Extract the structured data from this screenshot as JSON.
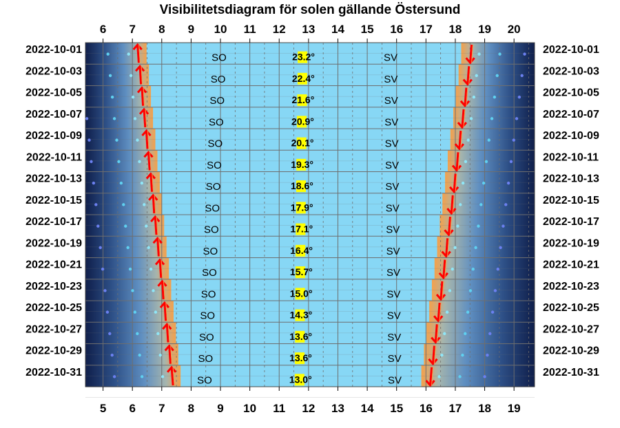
{
  "chart_data": {
    "type": "visibility-diagram",
    "title": "Visibilitetsdiagram för solen gällande Östersund",
    "top_axis_hours": [
      "6",
      "7",
      "8",
      "9",
      "10",
      "11",
      "12",
      "13",
      "14",
      "15",
      "16",
      "17",
      "18",
      "19",
      "20"
    ],
    "bottom_axis_hours": [
      "5",
      "6",
      "7",
      "8",
      "9",
      "10",
      "11",
      "12",
      "13",
      "14",
      "15",
      "16",
      "17",
      "18",
      "19"
    ],
    "top_axis_range": [
      5.4,
      20.7
    ],
    "bottom_axis_range": [
      4.4,
      19.7
    ],
    "grid": true,
    "colors": {
      "day": "#87d7f5",
      "twilight": "#f5a04a",
      "night": "#0f1e4a",
      "arrow": "#ff0000",
      "elevation_highlight": "#ffff00",
      "grid": "#6e6e6e"
    },
    "rows": [
      {
        "date": "2022-10-01",
        "sunrise": 7.2,
        "sunset": 18.53,
        "elevation": "23.2°",
        "rise_dir": "SO",
        "set_dir": "SV"
      },
      {
        "date": "2022-10-03",
        "sunrise": 7.28,
        "sunset": 18.44,
        "elevation": "22.4°",
        "rise_dir": "SO",
        "set_dir": "SV"
      },
      {
        "date": "2022-10-05",
        "sunrise": 7.35,
        "sunset": 18.35,
        "elevation": "21.6°",
        "rise_dir": "SO",
        "set_dir": "SV"
      },
      {
        "date": "2022-10-07",
        "sunrise": 7.42,
        "sunset": 18.26,
        "elevation": "20.9°",
        "rise_dir": "SO",
        "set_dir": "SV"
      },
      {
        "date": "2022-10-09",
        "sunrise": 7.5,
        "sunset": 18.16,
        "elevation": "20.1°",
        "rise_dir": "SO",
        "set_dir": "SV"
      },
      {
        "date": "2022-10-11",
        "sunrise": 7.57,
        "sunset": 18.07,
        "elevation": "19.3°",
        "rise_dir": "SO",
        "set_dir": "SV"
      },
      {
        "date": "2022-10-13",
        "sunrise": 7.65,
        "sunset": 17.98,
        "elevation": "18.6°",
        "rise_dir": "SO",
        "set_dir": "SV"
      },
      {
        "date": "2022-10-15",
        "sunrise": 7.73,
        "sunset": 17.89,
        "elevation": "17.9°",
        "rise_dir": "SO",
        "set_dir": "SV"
      },
      {
        "date": "2022-10-17",
        "sunrise": 7.8,
        "sunset": 17.8,
        "elevation": "17.1°",
        "rise_dir": "SO",
        "set_dir": "SV"
      },
      {
        "date": "2022-10-19",
        "sunrise": 7.88,
        "sunset": 17.71,
        "elevation": "16.4°",
        "rise_dir": "SO",
        "set_dir": "SV"
      },
      {
        "date": "2022-10-21",
        "sunrise": 7.96,
        "sunset": 17.62,
        "elevation": "15.7°",
        "rise_dir": "SO",
        "set_dir": "SV"
      },
      {
        "date": "2022-10-23",
        "sunrise": 8.04,
        "sunset": 17.53,
        "elevation": "15.0°",
        "rise_dir": "SO",
        "set_dir": "SV"
      },
      {
        "date": "2022-10-25",
        "sunrise": 8.12,
        "sunset": 17.44,
        "elevation": "14.3°",
        "rise_dir": "SO",
        "set_dir": "SV"
      },
      {
        "date": "2022-10-27",
        "sunrise": 8.2,
        "sunset": 17.35,
        "elevation": "13.6°",
        "rise_dir": "SO",
        "set_dir": "SV"
      },
      {
        "date": "2022-10-29",
        "sunrise": 8.28,
        "sunset": 17.26,
        "elevation": "13.6°",
        "rise_dir": "SO",
        "set_dir": "SV"
      },
      {
        "date": "2022-10-31",
        "sunrise": 8.36,
        "sunset": 17.17,
        "elevation": "13.0°",
        "rise_dir": "SO",
        "set_dir": "SV"
      }
    ]
  }
}
